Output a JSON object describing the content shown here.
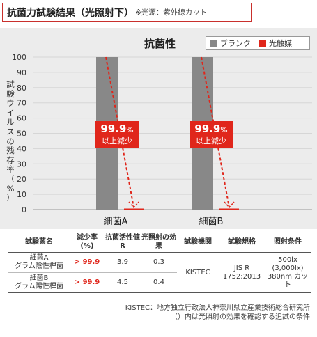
{
  "header": {
    "title": "抗菌力試験結果（光照射下）",
    "note": "※光源：紫外線カット"
  },
  "chart_data": {
    "type": "bar",
    "title": "抗菌性",
    "ylabel": "試験ウイルスの残存率（%）",
    "categories": [
      "細菌A",
      "細菌B"
    ],
    "ylim": [
      0,
      100
    ],
    "yticks": [
      0,
      10,
      20,
      30,
      40,
      50,
      60,
      70,
      80,
      90,
      100
    ],
    "series": [
      {
        "name": "ブランク",
        "color": "#888888",
        "values": [
          100,
          100
        ]
      },
      {
        "name": "光触媒",
        "color": "#e0261b",
        "values": [
          0.1,
          0.1
        ]
      }
    ],
    "annotations": [
      {
        "value": "99.9",
        "unit": "%",
        "text": "以上減少"
      },
      {
        "value": "99.9",
        "unit": "%",
        "text": "以上減少"
      }
    ]
  },
  "table": {
    "headers": [
      "試験菌名",
      "減少率(%)",
      "抗菌活性値R",
      "光照射の効果",
      "試験機関",
      "試験規格",
      "照射条件"
    ],
    "rows": [
      {
        "name": "細菌A",
        "type": "グラム陰性桿菌",
        "reduction": "> 99.9",
        "activity": "3.9",
        "effect": "0.3"
      },
      {
        "name": "細菌B",
        "type": "グラム陽性桿菌",
        "reduction": "> 99.9",
        "activity": "4.5",
        "effect": "0.4"
      }
    ],
    "institution": "KISTEC",
    "standard": "JIS R 1752:2013",
    "conditions": "500lx (3,000lx) 380nm カット"
  },
  "footnotes": [
    "KISTEC：地方独立行政法人神奈川県立産業技術総合研究所",
    "（）内は光照射の効果を確認する追試の条件"
  ]
}
